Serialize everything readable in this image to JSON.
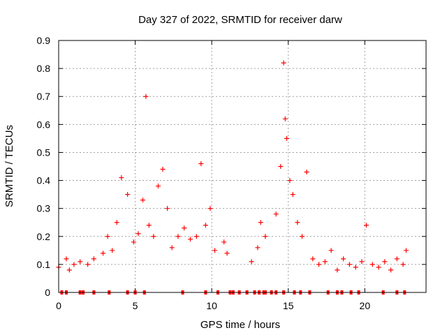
{
  "chart_data": {
    "type": "scatter",
    "title": "Day 327 of 2022, SRMTID for receiver darw",
    "xlabel": "GPS time / hours",
    "ylabel": "SRMTID / TECUs",
    "xlim": [
      0,
      24
    ],
    "ylim": [
      0,
      0.9
    ],
    "xticks": [
      0,
      5,
      10,
      15,
      20
    ],
    "yticks": [
      0,
      0.1,
      0.2,
      0.3,
      0.4,
      0.5,
      0.6,
      0.7,
      0.8,
      0.9
    ],
    "grid": true,
    "marker": "+",
    "color": "#ff0000",
    "series": [
      {
        "name": "SRMTID",
        "x": [
          0.0,
          0.5,
          0.7,
          1.0,
          1.4,
          1.9,
          2.3,
          2.9,
          3.2,
          3.5,
          3.8,
          4.1,
          4.5,
          4.9,
          5.2,
          5.5,
          5.7,
          5.9,
          6.2,
          6.5,
          6.8,
          7.1,
          7.4,
          7.8,
          8.2,
          8.6,
          9.0,
          9.3,
          9.6,
          9.9,
          10.2,
          10.8,
          11.0,
          12.6,
          13.0,
          13.2,
          13.5,
          14.2,
          14.5,
          14.7,
          14.8,
          14.9,
          15.1,
          15.3,
          15.6,
          15.9,
          16.2,
          16.6,
          17.0,
          17.4,
          17.8,
          18.2,
          18.6,
          19.0,
          19.4,
          19.8,
          20.1,
          20.5,
          20.9,
          21.3,
          21.7,
          22.1,
          22.5,
          22.7
        ],
        "y": [
          0.09,
          0.12,
          0.08,
          0.1,
          0.11,
          0.1,
          0.12,
          0.14,
          0.2,
          0.15,
          0.25,
          0.41,
          0.35,
          0.18,
          0.21,
          0.33,
          0.7,
          0.24,
          0.2,
          0.38,
          0.44,
          0.3,
          0.16,
          0.2,
          0.23,
          0.19,
          0.2,
          0.46,
          0.24,
          0.3,
          0.15,
          0.18,
          0.14,
          0.11,
          0.16,
          0.25,
          0.2,
          0.28,
          0.45,
          0.82,
          0.62,
          0.55,
          0.4,
          0.35,
          0.25,
          0.2,
          0.43,
          0.12,
          0.1,
          0.11,
          0.15,
          0.08,
          0.12,
          0.1,
          0.09,
          0.11,
          0.24,
          0.1,
          0.09,
          0.11,
          0.08,
          0.12,
          0.1,
          0.15
        ]
      }
    ],
    "zero_markers_x": [
      0.2,
      0.5,
      1.4,
      1.6,
      2.3,
      3.3,
      4.5,
      5.0,
      5.6,
      8.1,
      9.6,
      10.4,
      11.2,
      11.4,
      11.8,
      12.3,
      12.8,
      13.1,
      13.4,
      13.5,
      13.9,
      14.2,
      14.7,
      15.4,
      15.8,
      16.4,
      17.6,
      18.2,
      18.5,
      19.1,
      19.6,
      21.2,
      22.1,
      22.6
    ]
  }
}
